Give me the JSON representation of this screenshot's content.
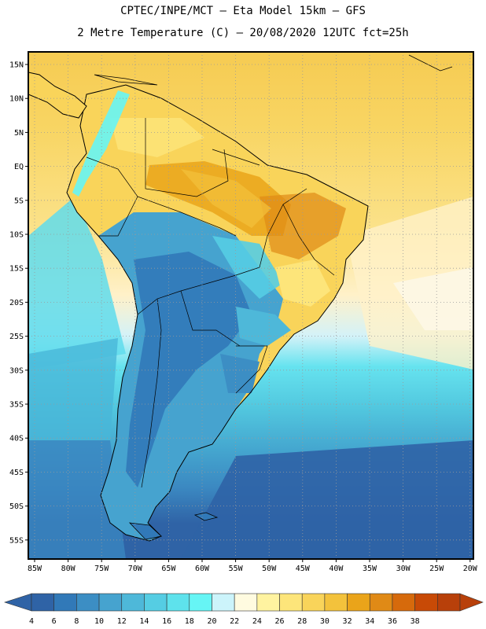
{
  "header": {
    "line1": "CPTEC/INPE/MCT –  Eta Model 15km – GFS",
    "line2": "2 Metre Temperature (C) – 20/08/2020 12UTC fct=25h"
  },
  "map": {
    "lat_labels": [
      "15N",
      "10N",
      "5N",
      "EQ",
      "5S",
      "10S",
      "15S",
      "20S",
      "25S",
      "30S",
      "35S",
      "40S",
      "45S",
      "50S",
      "55S"
    ],
    "lon_labels": [
      "85W",
      "80W",
      "75W",
      "70W",
      "65W",
      "60W",
      "55W",
      "50W",
      "45W",
      "40W",
      "35W",
      "30W",
      "25W",
      "20W"
    ],
    "colors": {
      "frame": "#000000",
      "grid": "#9a9a9a",
      "coast": "#000000"
    }
  },
  "colorbar": {
    "labels": [
      "4",
      "6",
      "8",
      "10",
      "12",
      "14",
      "16",
      "18",
      "20",
      "22",
      "24",
      "26",
      "28",
      "30",
      "32",
      "34",
      "36",
      "38"
    ],
    "colors": [
      "#2f63a6",
      "#3179b8",
      "#3c8ec4",
      "#46a3cf",
      "#4eb8d9",
      "#55cde3",
      "#5ee2ec",
      "#66f5f5",
      "#ccf4fb",
      "#fffbe0",
      "#fff3a0",
      "#fde57a",
      "#f9d45a",
      "#f3c23c",
      "#eaa41a",
      "#e08a16",
      "#d66a0c",
      "#c84a06",
      "#b8400a"
    ]
  }
}
